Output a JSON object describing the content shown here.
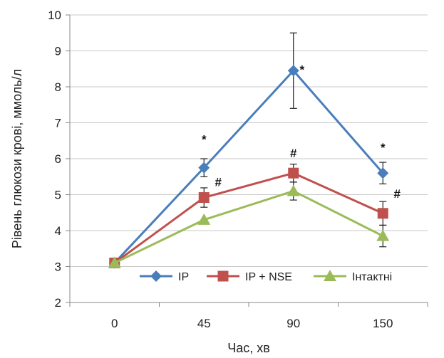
{
  "chart_data": {
    "type": "line",
    "title": "",
    "xlabel": "Час, хв",
    "ylabel": "Рівень глюкози крові, ммоль/л",
    "categories": [
      "0",
      "45",
      "90",
      "150"
    ],
    "ylim": [
      2,
      10
    ],
    "yticks": [
      2,
      3,
      4,
      5,
      6,
      7,
      8,
      9,
      10
    ],
    "grid": true,
    "legend_position": "bottom-inside",
    "series": [
      {
        "name": "IP",
        "color": "#4a7ebb",
        "marker": "diamond",
        "values": [
          3.1,
          5.75,
          8.45,
          5.6
        ],
        "errors": [
          0,
          0.25,
          1.05,
          0.3
        ],
        "annotations": [
          "",
          "*",
          "*",
          "*"
        ]
      },
      {
        "name": "IP + NSE",
        "color": "#c0504d",
        "marker": "square",
        "values": [
          3.1,
          4.92,
          5.6,
          4.48
        ],
        "errors": [
          0,
          0.27,
          0.25,
          0.33
        ],
        "annotations": [
          "",
          "#",
          "#",
          "#"
        ]
      },
      {
        "name": "Інтактні",
        "color": "#9bbb59",
        "marker": "triangle",
        "values": [
          3.1,
          4.3,
          5.1,
          3.85
        ],
        "errors": [
          0,
          0,
          0.25,
          0.3
        ],
        "annotations": [
          "",
          "",
          "",
          ""
        ]
      }
    ]
  }
}
